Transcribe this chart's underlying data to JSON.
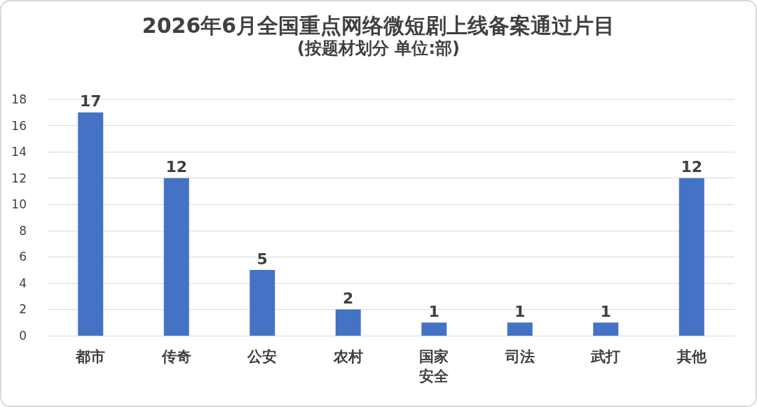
{
  "chart_data": {
    "type": "bar",
    "title": "2026年6月全国重点网络微短剧上线备案通过片目",
    "subtitle": "(按题材划分 单位:部)",
    "categories": [
      "都市",
      "传奇",
      "公安",
      "农村",
      "国家安全",
      "司法",
      "武打",
      "其他"
    ],
    "values": [
      17,
      12,
      5,
      2,
      1,
      1,
      1,
      12
    ],
    "color": "#4472c4",
    "ylim": [
      0,
      18
    ],
    "yticks": [
      0,
      2,
      4,
      6,
      8,
      10,
      12,
      14,
      16,
      18
    ],
    "grid": "y",
    "data_labels": true
  }
}
